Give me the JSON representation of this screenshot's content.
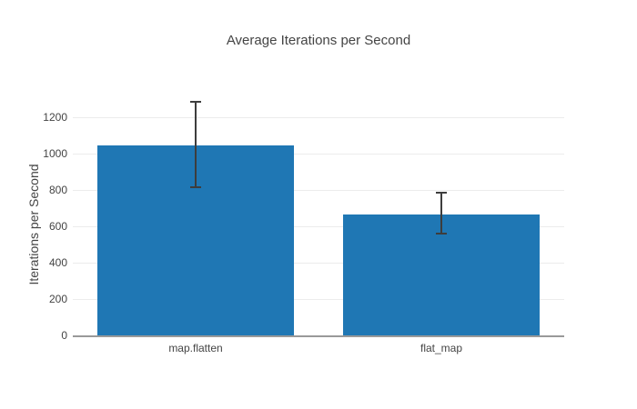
{
  "chart_data": {
    "type": "bar",
    "title": "Average Iterations per Second",
    "xlabel": "",
    "ylabel": "Iterations per Second",
    "categories": [
      "map.flatten",
      "flat_map"
    ],
    "values": [
      1045,
      667
    ],
    "error_low": [
      815,
      560
    ],
    "error_high": [
      1285,
      785
    ],
    "yticks": [
      0,
      200,
      400,
      600,
      800,
      1000,
      1200
    ],
    "ylim": [
      0,
      1330
    ],
    "grid": "horizontal",
    "legend": "none",
    "orientation": "vertical",
    "colors": {
      "bar": "#1f77b4",
      "error_bar": "#3d3d3d",
      "gridline": "#ececec",
      "axis_line": "#999999",
      "text": "#444444",
      "background": "#ffffff"
    }
  }
}
